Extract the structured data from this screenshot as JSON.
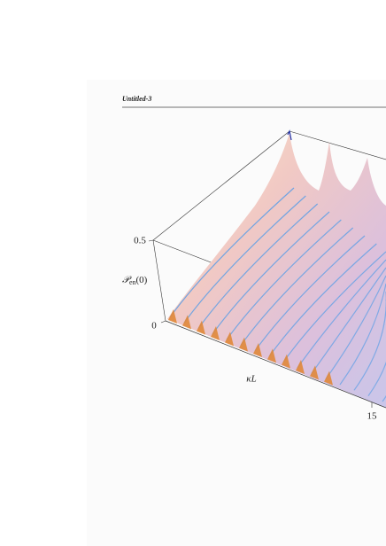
{
  "window": {
    "title": "Untitled-3"
  },
  "plot": {
    "vertical_axis": {
      "ticks": [
        "0.5",
        "0"
      ],
      "label": {
        "symbol": "𝒫",
        "subscript": "en",
        "argument": "(0)"
      }
    },
    "depth_axis": {
      "label": "κL",
      "ticks": [
        "15"
      ]
    }
  }
}
